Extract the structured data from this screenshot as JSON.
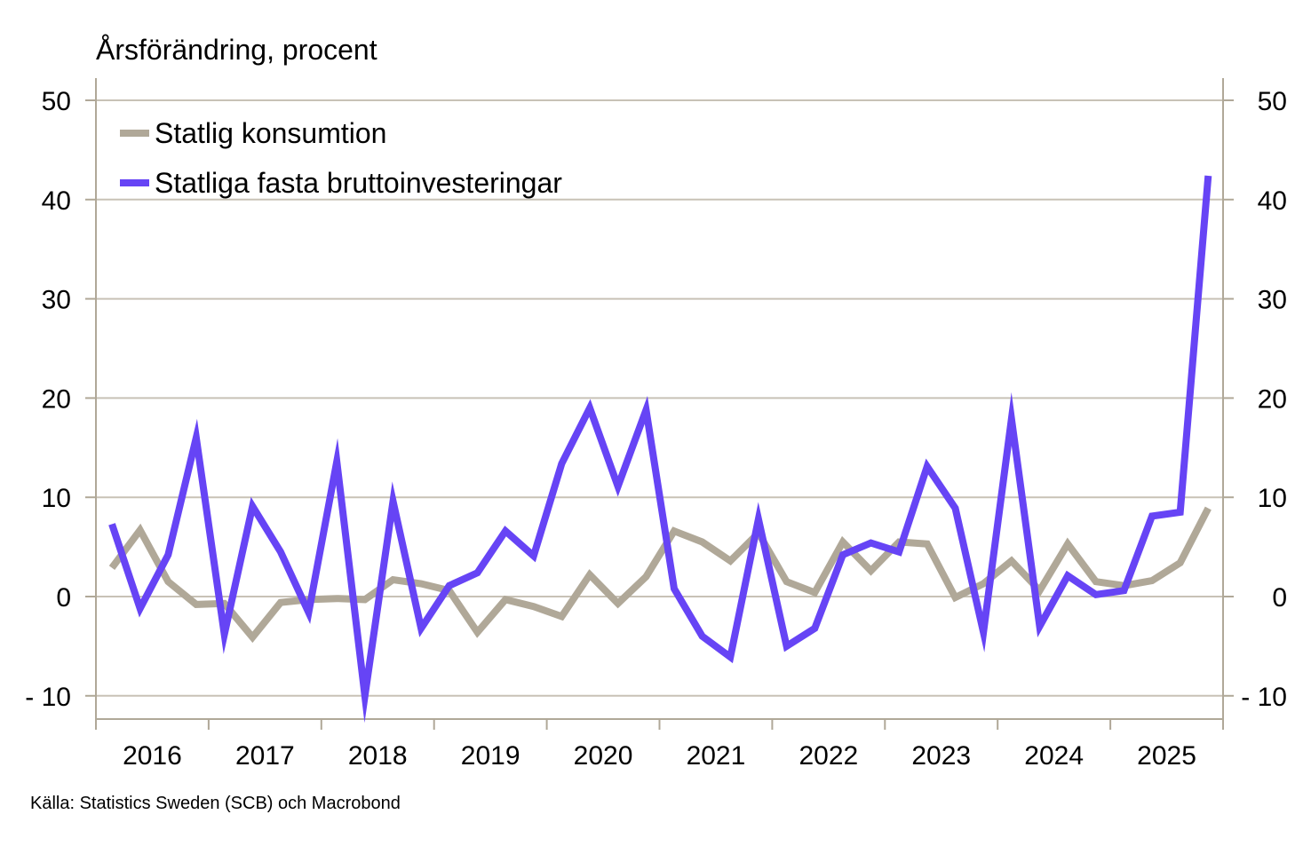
{
  "chart_data": {
    "type": "line",
    "title": "",
    "ylabel": "Årsförändring, procent",
    "xlabel": "",
    "ylim": [
      -12.5,
      52
    ],
    "yticks": [
      -10,
      0,
      10,
      20,
      30,
      40,
      50
    ],
    "ytick_labels": [
      "- 10",
      "0",
      "10",
      "20",
      "30",
      "40",
      "50"
    ],
    "secondary_y_axis": true,
    "grid": true,
    "legend_position": "top-left",
    "x_categories": [
      "2016",
      "2017",
      "2018",
      "2019",
      "2020",
      "2021",
      "2022",
      "2023",
      "2024",
      "2025"
    ],
    "x_frequency": "quarterly",
    "x": [
      "2016Q1",
      "2016Q2",
      "2016Q3",
      "2016Q4",
      "2017Q1",
      "2017Q2",
      "2017Q3",
      "2017Q4",
      "2018Q1",
      "2018Q2",
      "2018Q3",
      "2018Q4",
      "2019Q1",
      "2019Q2",
      "2019Q3",
      "2019Q4",
      "2020Q1",
      "2020Q2",
      "2020Q3",
      "2020Q4",
      "2021Q1",
      "2021Q2",
      "2021Q3",
      "2021Q4",
      "2022Q1",
      "2022Q2",
      "2022Q3",
      "2022Q4",
      "2023Q1",
      "2023Q2",
      "2023Q3",
      "2023Q4",
      "2024Q1",
      "2024Q2",
      "2024Q3",
      "2024Q4",
      "2025Q1",
      "2025Q2",
      "2025Q3",
      "2025Q4"
    ],
    "series": [
      {
        "name": "Statlig konsumtion",
        "color": "#b0a898",
        "values": [
          2.9,
          6.7,
          1.5,
          -0.8,
          -0.7,
          -4.1,
          -0.6,
          -0.3,
          -0.2,
          -0.3,
          1.7,
          1.3,
          0.6,
          -3.6,
          -0.3,
          -1.0,
          -2.0,
          2.2,
          -0.7,
          2.0,
          6.6,
          5.5,
          3.6,
          6.4,
          1.5,
          0.4,
          5.5,
          2.6,
          5.5,
          5.3,
          -0.1,
          1.3,
          3.6,
          0.6,
          5.3,
          1.5,
          1.1,
          1.6,
          3.4,
          8.9
        ]
      },
      {
        "name": "Statliga fasta bruttoinvesteringar",
        "color": "#6644f5",
        "values": [
          7.3,
          -1.2,
          4.2,
          16.0,
          -3.8,
          9.1,
          4.5,
          -1.6,
          13.6,
          -10.0,
          9.6,
          -3.2,
          1.1,
          2.4,
          6.6,
          4.1,
          13.4,
          19.0,
          11.1,
          18.8,
          0.8,
          -4.0,
          -6.1,
          7.8,
          -5.0,
          -3.2,
          4.2,
          5.4,
          4.5,
          13.1,
          8.9,
          -3.6,
          17.9,
          -3.0,
          2.1,
          0.2,
          0.6,
          8.1,
          8.5,
          42.4
        ]
      }
    ]
  },
  "labels": {
    "y_title": "Årsförändring, procent",
    "source": "Källa: Statistics Sweden (SCB)  och Macrobond"
  },
  "colors": {
    "axis": "#b0a898",
    "grid": "#c8c2b6"
  }
}
